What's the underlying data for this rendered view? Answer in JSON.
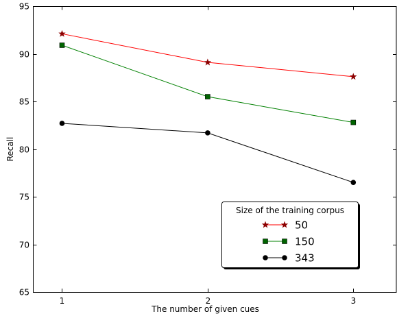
{
  "chart_data": {
    "type": "line",
    "title": "",
    "xlabel": "The number of given cues",
    "ylabel": "Recall",
    "x": [
      1,
      2,
      3
    ],
    "xlim": [
      0.8,
      3.3
    ],
    "ylim": [
      65,
      95
    ],
    "xticks": [
      1,
      2,
      3
    ],
    "yticks": [
      65,
      70,
      75,
      80,
      85,
      90,
      95
    ],
    "grid": false,
    "legend": {
      "title": "Size of the training corpus",
      "placement": "lower-right"
    },
    "series": [
      {
        "name": "50",
        "values": [
          92.1,
          89.1,
          87.6
        ],
        "color": "#ff0000",
        "marker_color": "#8b0000",
        "marker": "star"
      },
      {
        "name": "150",
        "values": [
          90.9,
          85.5,
          82.8
        ],
        "color": "#008000",
        "marker_color": "#006400",
        "marker": "square"
      },
      {
        "name": "343",
        "values": [
          82.7,
          81.7,
          76.5
        ],
        "color": "#000000",
        "marker_color": "#000000",
        "marker": "circle"
      }
    ]
  }
}
